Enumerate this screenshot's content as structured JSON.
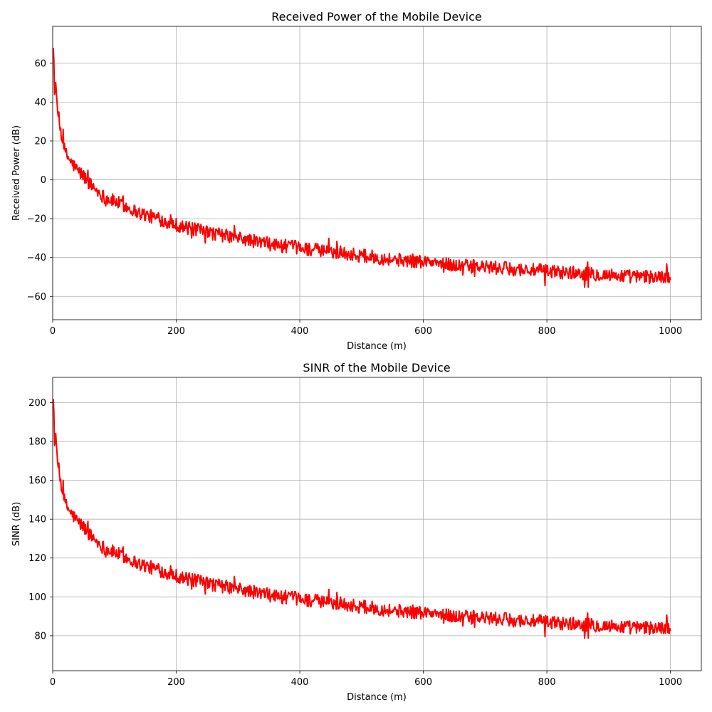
{
  "chart_data": [
    {
      "type": "line",
      "title": "Received Power of the Mobile Device",
      "xlabel": "Distance (m)",
      "ylabel": "Received Power (dB)",
      "xlim": [
        0,
        1050
      ],
      "ylim": [
        -72,
        79
      ],
      "xticks": [
        0,
        200,
        400,
        600,
        800,
        1000
      ],
      "yticks": [
        -60,
        -40,
        -20,
        0,
        20,
        40,
        60
      ],
      "xtick_labels": [
        "0",
        "200",
        "400",
        "600",
        "800",
        "1000"
      ],
      "ytick_labels": [
        "−60",
        "−40",
        "−20",
        "0",
        "20",
        "40",
        "60"
      ],
      "grid": true,
      "series": [
        {
          "color": "#ff0000",
          "trend": {
            "x": [
              1,
              2,
              3,
              5,
              8,
              12,
              20,
              30,
              40,
              50,
              60,
              70,
              80,
              90,
              100,
              120,
              140,
              160,
              180,
              200,
              220,
              250,
              300,
              350,
              400,
              450,
              500,
              550,
              600,
              650,
              700,
              750,
              800,
              850,
              900,
              950,
              1000
            ],
            "y": [
              72,
              60,
              48,
              42,
              36,
              27,
              14,
              9,
              5,
              2,
              -2,
              -5,
              -8,
              -10,
              -11,
              -14,
              -17,
              -19,
              -21,
              -23,
              -25,
              -27,
              -30,
              -33,
              -35,
              -37,
              -39,
              -41,
              -42,
              -44,
              -45,
              -46,
              -47,
              -48,
              -49,
              -50,
              -50
            ]
          },
          "noise_amplitude": 3.5
        }
      ]
    },
    {
      "type": "line",
      "title": "SINR of the Mobile Device",
      "xlabel": "Distance (m)",
      "ylabel": "SINR (dB)",
      "xlim": [
        0,
        1050
      ],
      "ylim": [
        62,
        213
      ],
      "xticks": [
        0,
        200,
        400,
        600,
        800,
        1000
      ],
      "yticks": [
        80,
        100,
        120,
        140,
        160,
        180,
        200
      ],
      "xtick_labels": [
        "0",
        "200",
        "400",
        "600",
        "800",
        "1000"
      ],
      "ytick_labels": [
        "80",
        "100",
        "120",
        "140",
        "160",
        "180",
        "200"
      ],
      "grid": true,
      "series": [
        {
          "color": "#ff0000",
          "trend": {
            "x": [
              1,
              2,
              3,
              5,
              8,
              12,
              20,
              30,
              40,
              50,
              60,
              70,
              80,
              90,
              100,
              120,
              140,
              160,
              180,
              200,
              220,
              250,
              300,
              350,
              400,
              450,
              500,
              550,
              600,
              650,
              700,
              750,
              800,
              850,
              900,
              950,
              1000
            ],
            "y": [
              206,
              194,
              182,
              176,
              170,
              161,
              148,
              143,
              139,
              136,
              132,
              129,
              126,
              124,
              123,
              120,
              117,
              115,
              113,
              111,
              109,
              107,
              104,
              101,
              99,
              97,
              95,
              93,
              92,
              90,
              89,
              88,
              87,
              86,
              85,
              84,
              84
            ]
          },
          "noise_amplitude": 3.5
        }
      ]
    }
  ]
}
